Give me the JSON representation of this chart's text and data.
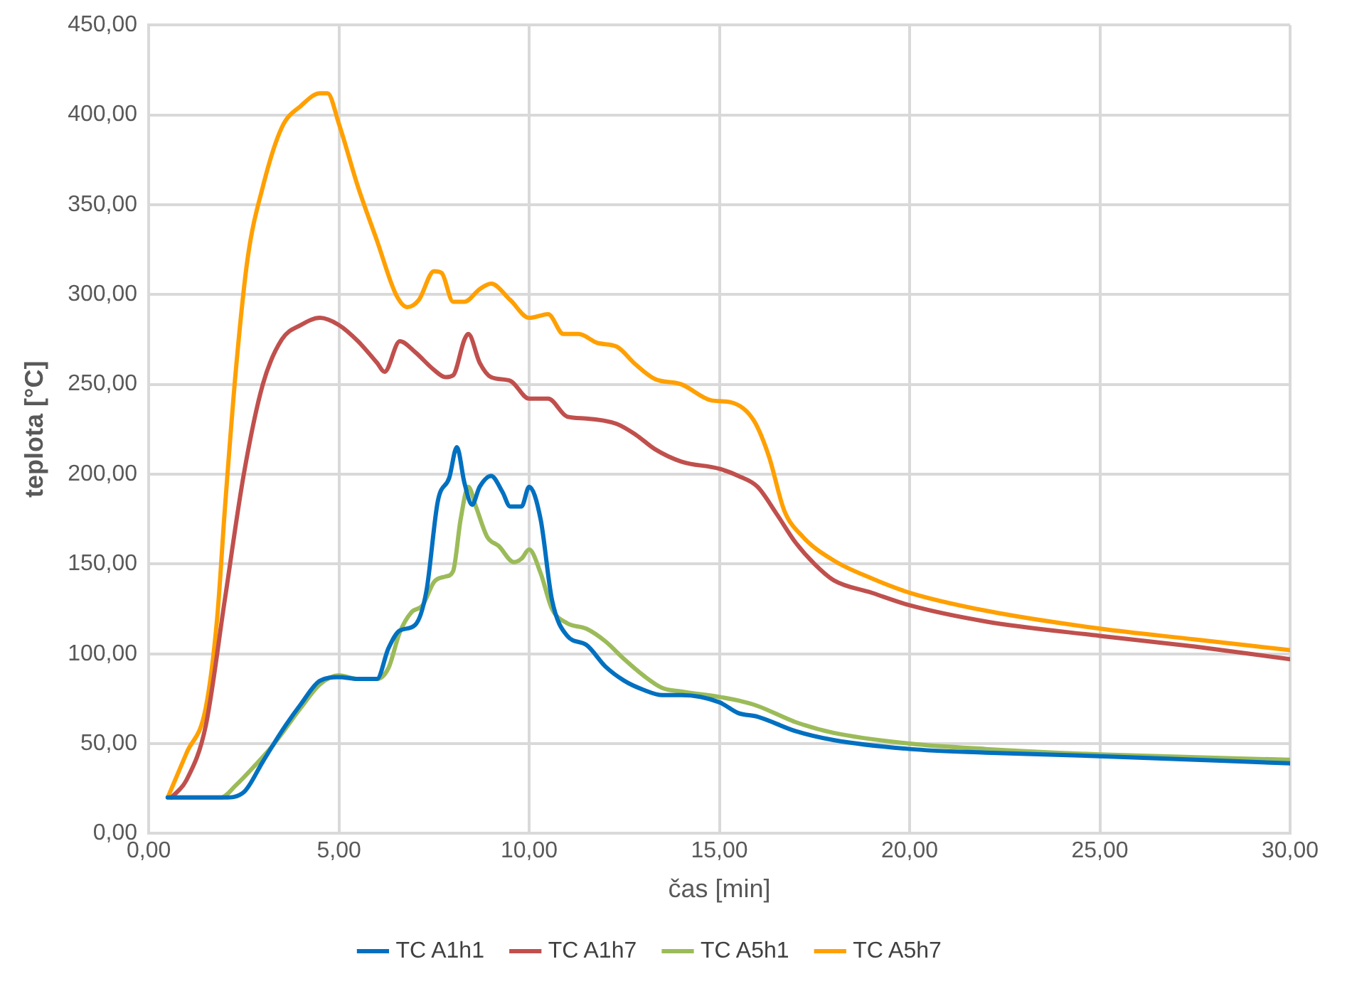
{
  "chart_data": {
    "type": "line",
    "xlabel": "čas [min]",
    "ylabel": "teplota [°C]",
    "xlim": [
      0,
      30
    ],
    "ylim": [
      0,
      450
    ],
    "xticks": [
      {
        "value": 0,
        "label": "0,00"
      },
      {
        "value": 5,
        "label": "5,00"
      },
      {
        "value": 10,
        "label": "10,00"
      },
      {
        "value": 15,
        "label": "15,00"
      },
      {
        "value": 20,
        "label": "20,00"
      },
      {
        "value": 25,
        "label": "25,00"
      },
      {
        "value": 30,
        "label": "30,00"
      }
    ],
    "yticks": [
      {
        "value": 0,
        "label": "0,00"
      },
      {
        "value": 50,
        "label": "50,00"
      },
      {
        "value": 100,
        "label": "100,00"
      },
      {
        "value": 150,
        "label": "150,00"
      },
      {
        "value": 200,
        "label": "200,00"
      },
      {
        "value": 250,
        "label": "250,00"
      },
      {
        "value": 300,
        "label": "300,00"
      },
      {
        "value": 350,
        "label": "350,00"
      },
      {
        "value": 400,
        "label": "400,00"
      },
      {
        "value": 450,
        "label": "450,00"
      }
    ],
    "grid": true,
    "legend": "bottom",
    "marker": "none",
    "line_style": "solid",
    "series": [
      {
        "name": "TC A1h1",
        "color": "#0070c0",
        "x": [
          0.5,
          2.0,
          2.5,
          3.0,
          3.5,
          4.0,
          4.5,
          5.0,
          5.5,
          6.0,
          6.3,
          6.6,
          7.0,
          7.3,
          7.6,
          7.9,
          8.1,
          8.3,
          8.5,
          8.7,
          9.0,
          9.3,
          9.5,
          9.8,
          10.0,
          10.3,
          10.6,
          11.0,
          11.5,
          12,
          12.5,
          13,
          13.5,
          14,
          15,
          15.5,
          16,
          17,
          18,
          20,
          22,
          25,
          30
        ],
        "values": [
          20,
          20,
          23,
          40,
          57,
          72,
          85,
          87,
          86,
          86,
          103,
          113,
          116,
          135,
          185,
          198,
          215,
          195,
          183,
          193,
          199,
          190,
          182,
          182,
          193,
          175,
          130,
          110,
          105,
          93,
          85,
          80,
          77,
          77,
          73,
          67,
          65,
          57,
          52,
          47,
          45,
          43,
          39
        ]
      },
      {
        "name": "TC A1h7",
        "color": "#c0504d",
        "x": [
          0.6,
          1.0,
          1.5,
          2.0,
          2.5,
          3.0,
          3.5,
          4.0,
          4.5,
          5.0,
          5.5,
          6.0,
          6.2,
          6.6,
          7.0,
          7.5,
          7.8,
          8.0,
          8.3,
          8.4,
          8.7,
          9.0,
          9.5,
          10.0,
          10.5,
          11.0,
          11.5,
          12.3,
          12.8,
          13.3,
          14.0,
          15.0,
          15.5,
          16.0,
          16.5,
          17.0,
          17.5,
          18.0,
          19,
          20,
          22,
          25,
          27.5,
          30
        ],
        "values": [
          20,
          30,
          60,
          130,
          200,
          250,
          275,
          283,
          287,
          283,
          274,
          262,
          257,
          274,
          268,
          258,
          254,
          255,
          275,
          278,
          262,
          254,
          252,
          242,
          242,
          232,
          231,
          228,
          222,
          214,
          207,
          203,
          199,
          193,
          178,
          162,
          150,
          141,
          134,
          127,
          118,
          110,
          104,
          97
        ]
      },
      {
        "name": "TC A5h1",
        "color": "#9bbb59",
        "x": [
          0.5,
          1.9,
          2.3,
          2.8,
          3.3,
          4.0,
          4.5,
          5.0,
          5.5,
          6.0,
          6.3,
          6.6,
          6.9,
          7.2,
          7.5,
          7.8,
          8.0,
          8.2,
          8.4,
          8.6,
          8.9,
          9.2,
          9.6,
          9.8,
          10.0,
          10.3,
          10.6,
          11.0,
          11.5,
          12,
          12.5,
          13,
          13.5,
          14,
          15,
          15.5,
          16,
          17,
          18,
          20,
          22,
          25,
          30
        ],
        "values": [
          20,
          20,
          27,
          38,
          50,
          70,
          83,
          88,
          86,
          86,
          92,
          112,
          123,
          127,
          140,
          143,
          146,
          175,
          193,
          182,
          165,
          160,
          151,
          153,
          158,
          145,
          125,
          117,
          114,
          107,
          97,
          88,
          81,
          79,
          76,
          74,
          71,
          62,
          56,
          50,
          47,
          44,
          41
        ]
      },
      {
        "name": "TC A5h7",
        "color": "#ffa000",
        "x": [
          0.5,
          1.0,
          1.5,
          1.8,
          2.0,
          2.3,
          2.6,
          3.0,
          3.5,
          4.0,
          4.5,
          4.7,
          5.0,
          5.5,
          6.0,
          6.5,
          6.8,
          7.1,
          7.5,
          7.7,
          8.0,
          8.3,
          8.7,
          9.0,
          9.5,
          10.0,
          10.5,
          10.9,
          11.3,
          11.8,
          12.3,
          12.8,
          13.3,
          14.0,
          14.8,
          15.3,
          15.9,
          16.3,
          16.7,
          17.2,
          18.0,
          19,
          20,
          22,
          25,
          27.5,
          30
        ],
        "values": [
          20,
          45,
          70,
          120,
          180,
          260,
          320,
          360,
          393,
          405,
          412,
          412,
          395,
          360,
          330,
          300,
          293,
          297,
          313,
          312,
          296,
          296,
          303,
          306,
          297,
          287,
          289,
          278,
          278,
          273,
          271,
          261,
          253,
          250,
          241,
          240,
          230,
          210,
          180,
          165,
          152,
          142,
          134,
          124,
          114,
          108,
          102
        ]
      }
    ]
  }
}
